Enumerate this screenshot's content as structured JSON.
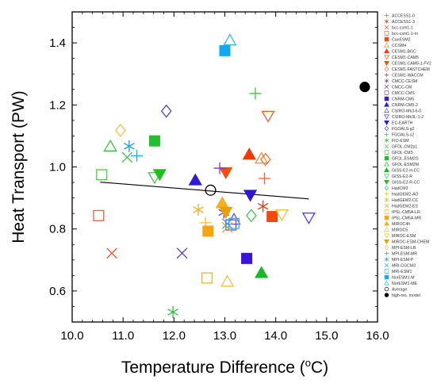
{
  "chart_data": {
    "type": "scatter",
    "title": "",
    "xlabel": "Temperature Difference (",
    "xlabel_unit": "C)",
    "xlabel_degree": "o",
    "ylabel": "Heat Transport (PW)",
    "xlim": [
      10.0,
      16.0
    ],
    "ylim": [
      0.5,
      1.5
    ],
    "x_ticks": [
      "10.0",
      "11.0",
      "12.0",
      "13.0",
      "14.0",
      "15.0",
      "16.0"
    ],
    "y_ticks": [
      "0.6",
      "0.8",
      "1.0",
      "1.2",
      "1.4"
    ],
    "regression_line": {
      "x": [
        10.55,
        14.65
      ],
      "y": [
        0.951,
        0.897
      ]
    },
    "legend_position": "right",
    "series": [
      {
        "name": "ACCESS1-0",
        "marker": "plus",
        "color": "#ff5a36",
        "filled": false,
        "x": [
          13.78
        ],
        "y": [
          0.963
        ]
      },
      {
        "name": "ACCESS1-3",
        "marker": "asterisk",
        "color": "#e8401c",
        "filled": false,
        "x": [
          13.75
        ],
        "y": [
          0.873
        ]
      },
      {
        "name": "bcc-csm1-1",
        "marker": "cross",
        "color": "#f0502a",
        "filled": false,
        "x": [
          10.78
        ],
        "y": [
          0.722
        ]
      },
      {
        "name": "bcc-csm1-1-m",
        "marker": "square",
        "color": "#f06030",
        "filled": false,
        "x": [
          10.52
        ],
        "y": [
          0.843
        ]
      },
      {
        "name": "CanESM2",
        "marker": "square",
        "color": "#f04a12",
        "filled": true,
        "x": [
          13.93
        ],
        "y": [
          0.84
        ]
      },
      {
        "name": "CCSM4",
        "marker": "triangle-up",
        "color": "#ff8a2e",
        "filled": false,
        "x": [
          13.72
        ],
        "y": [
          1.027
        ]
      },
      {
        "name": "CESM1-BGC",
        "marker": "triangle-up",
        "color": "#f03a0a",
        "filled": true,
        "x": [
          13.48
        ],
        "y": [
          1.04
        ]
      },
      {
        "name": "CESM1-CAM5",
        "marker": "triangle-down",
        "color": "#ff5a20",
        "filled": false,
        "x": [
          13.85
        ],
        "y": [
          1.165
        ]
      },
      {
        "name": "CESM1-CAM5-1-FV2",
        "marker": "triangle-down",
        "color": "#ff4a08",
        "filled": true,
        "x": [
          13.02
        ],
        "y": [
          0.983
        ]
      },
      {
        "name": "CESM1-FASTCHEM",
        "marker": "diamond",
        "color": "#ff6a2a",
        "filled": false,
        "x": [
          13.8
        ],
        "y": [
          1.024
        ]
      },
      {
        "name": "CESM1-WACCM",
        "marker": "plus",
        "color": "#7a3ccc",
        "filled": false,
        "x": [
          12.9
        ],
        "y": [
          0.996
        ]
      },
      {
        "name": "CMCC-CESM",
        "marker": "asterisk",
        "color": "#6a38c8",
        "filled": false,
        "x": [
          12.98
        ],
        "y": [
          0.853
        ]
      },
      {
        "name": "CMCC-CM",
        "marker": "cross",
        "color": "#5a38c0",
        "filled": false,
        "x": [
          12.16
        ],
        "y": [
          0.722
        ]
      },
      {
        "name": "CMCC-CMS",
        "marker": "square",
        "color": "#6a48c8",
        "filled": false,
        "x": [
          13.12
        ],
        "y": [
          0.813
        ]
      },
      {
        "name": "CNRM-CM5",
        "marker": "square",
        "color": "#3a14d8",
        "filled": true,
        "x": [
          13.43
        ],
        "y": [
          0.705
        ]
      },
      {
        "name": "CNRM-CM5-2",
        "marker": "triangle-up",
        "color": "#2e1ad8",
        "filled": true,
        "x": [
          12.42
        ],
        "y": [
          0.957
        ]
      },
      {
        "name": "CSIRO-Mk3-6-0",
        "marker": "triangle-up",
        "color": "#5a50e0",
        "filled": false,
        "x": [
          13.18
        ],
        "y": [
          0.83
        ]
      },
      {
        "name": "CSIRO-Mk3L-1-2",
        "marker": "triangle-down",
        "color": "#4a40e0",
        "filled": false,
        "x": [
          14.65
        ],
        "y": [
          0.837
        ]
      },
      {
        "name": "EC-EARTH",
        "marker": "triangle-down",
        "color": "#2a18d0",
        "filled": true,
        "x": [
          13.5
        ],
        "y": [
          0.91
        ]
      },
      {
        "name": "FGOALS-g2",
        "marker": "diamond",
        "color": "#4a40d0",
        "filled": false,
        "x": [
          11.85
        ],
        "y": [
          1.18
        ]
      },
      {
        "name": "FGOALS-s2",
        "marker": "plus",
        "color": "#36cc4a",
        "filled": false,
        "x": [
          13.6
        ],
        "y": [
          1.237
        ]
      },
      {
        "name": "FIO-ESM",
        "marker": "asterisk",
        "color": "#28c040",
        "filled": false,
        "x": [
          11.98
        ],
        "y": [
          0.532
        ]
      },
      {
        "name": "GFDL-CM2p1",
        "marker": "cross",
        "color": "#3ac84a",
        "filled": false,
        "x": [
          11.08
        ],
        "y": [
          1.031
        ]
      },
      {
        "name": "GFDL-CM3",
        "marker": "square",
        "color": "#48d040",
        "filled": false,
        "x": [
          10.58
        ],
        "y": [
          0.975
        ]
      },
      {
        "name": "GFDL-ESM2G",
        "marker": "square",
        "color": "#22c030",
        "filled": true,
        "x": [
          11.62
        ],
        "y": [
          1.084
        ]
      },
      {
        "name": "GFDL-ESM2M",
        "marker": "triangle-up",
        "color": "#30c838",
        "filled": false,
        "x": [
          10.75
        ],
        "y": [
          1.066
        ]
      },
      {
        "name": "GISS-E2-H-CC",
        "marker": "triangle-up",
        "color": "#18b828",
        "filled": true,
        "x": [
          13.72
        ],
        "y": [
          0.658
        ]
      },
      {
        "name": "GISS-E2-R",
        "marker": "triangle-down",
        "color": "#40c840",
        "filled": false,
        "x": [
          11.62
        ],
        "y": [
          0.967
        ]
      },
      {
        "name": "GISS-E2-R-CC",
        "marker": "triangle-down",
        "color": "#20c020",
        "filled": true,
        "x": [
          11.72
        ],
        "y": [
          0.977
        ]
      },
      {
        "name": "HadCM3",
        "marker": "diamond",
        "color": "#38c850",
        "filled": false,
        "x": [
          13.52
        ],
        "y": [
          0.843
        ]
      },
      {
        "name": "HadGEM2-AO",
        "marker": "plus",
        "color": "#f5c030",
        "filled": false,
        "x": [
          12.62
        ],
        "y": [
          0.82
        ]
      },
      {
        "name": "HadGEM2-CC",
        "marker": "asterisk",
        "color": "#f0b020",
        "filled": false,
        "x": [
          12.48
        ],
        "y": [
          0.862
        ]
      },
      {
        "name": "HadGEM2-ES",
        "marker": "cross",
        "color": "#e8a830",
        "filled": false,
        "x": [
          13.05
        ],
        "y": [
          0.805
        ]
      },
      {
        "name": "IPSL-CM5A-LR",
        "marker": "square",
        "color": "#f0b038",
        "filled": false,
        "x": [
          12.65
        ],
        "y": [
          0.642
        ]
      },
      {
        "name": "IPSL-CM5A-MR",
        "marker": "square",
        "color": "#f5a510",
        "filled": true,
        "x": [
          12.67
        ],
        "y": [
          0.793
        ]
      },
      {
        "name": "MIROC4h",
        "marker": "triangle-up",
        "color": "#f5b020",
        "filled": true,
        "x": [
          12.95
        ],
        "y": [
          0.883
        ]
      },
      {
        "name": "MIROC5",
        "marker": "triangle-up",
        "color": "#f0c040",
        "filled": false,
        "x": [
          13.05
        ],
        "y": [
          0.63
        ]
      },
      {
        "name": "MIROC-ESM",
        "marker": "triangle-down",
        "color": "#f0c030",
        "filled": false,
        "x": [
          14.12
        ],
        "y": [
          0.847
        ]
      },
      {
        "name": "MIROC-ESM-CHEM",
        "marker": "triangle-down",
        "color": "#e8a008",
        "filled": true,
        "x": [
          13.02
        ],
        "y": [
          0.855
        ]
      },
      {
        "name": "MPI-ESM-LR",
        "marker": "diamond",
        "color": "#f0c040",
        "filled": false,
        "x": [
          10.95
        ],
        "y": [
          1.118
        ]
      },
      {
        "name": "MPI-ESM-MR",
        "marker": "plus",
        "color": "#1ea8f0",
        "filled": false,
        "x": [
          11.27
        ],
        "y": [
          1.036
        ]
      },
      {
        "name": "MPI-ESM-P",
        "marker": "asterisk",
        "color": "#18a0f0",
        "filled": false,
        "x": [
          11.12
        ],
        "y": [
          1.067
        ]
      },
      {
        "name": "MRI-CGCM3",
        "marker": "cross",
        "color": "#28a8f0",
        "filled": false,
        "x": [
          13.05
        ],
        "y": [
          0.817
        ]
      },
      {
        "name": "MRI-ESM1",
        "marker": "square",
        "color": "#38b0f0",
        "filled": false,
        "x": [
          13.18
        ],
        "y": [
          0.818
        ]
      },
      {
        "name": "NorESM1-M",
        "marker": "square",
        "color": "#14a8ee",
        "filled": true,
        "x": [
          13.0
        ],
        "y": [
          1.375
        ]
      },
      {
        "name": "NorESM1-ME",
        "marker": "triangle-up",
        "color": "#28b8f0",
        "filled": false,
        "x": [
          13.1
        ],
        "y": [
          1.408
        ]
      },
      {
        "name": "Average",
        "marker": "circle",
        "color": "#000000",
        "filled": false,
        "x": [
          12.72
        ],
        "y": [
          0.925
        ]
      },
      {
        "name": "high-res. model",
        "marker": "circle",
        "color": "#000000",
        "filled": true,
        "x": [
          15.75
        ],
        "y": [
          1.258
        ]
      }
    ]
  }
}
